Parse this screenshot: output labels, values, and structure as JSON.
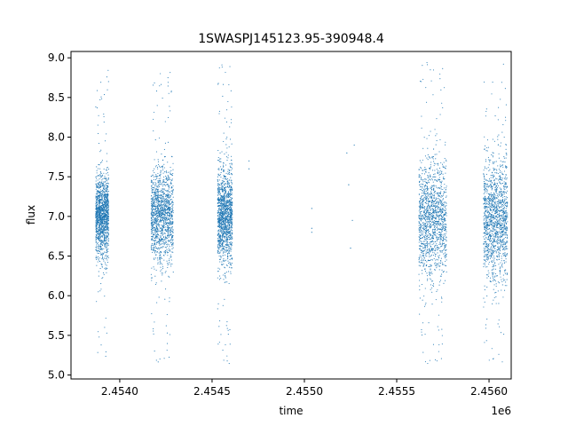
{
  "chart_data": {
    "type": "scatter",
    "title": "1SWASPJ145123.95-390948.4",
    "xlabel": "time",
    "ylabel": "flux",
    "x_offset_label": "1e6",
    "xlim": [
      2453736,
      2456120
    ],
    "ylim": [
      4.95,
      9.08
    ],
    "x_ticks": [
      2.454,
      2.4545,
      2.455,
      2.4555,
      2.456
    ],
    "x_tick_labels": [
      "2.4540",
      "2.4545",
      "2.4550",
      "2.4555",
      "2.4560"
    ],
    "y_ticks": [
      5.0,
      5.5,
      6.0,
      6.5,
      7.0,
      7.5,
      8.0,
      8.5,
      9.0
    ],
    "y_tick_labels": [
      "5.0",
      "5.5",
      "6.0",
      "6.5",
      "7.0",
      "7.5",
      "8.0",
      "8.5",
      "9.0"
    ],
    "grid": false,
    "marker_color": "#1f77b4",
    "series": [
      {
        "seasons": [
          {
            "x_range": [
              2453870,
              2453940
            ],
            "center": 7.0,
            "spread": 0.25,
            "min": 5.15,
            "max": 8.85
          },
          {
            "x_range": [
              2454170,
              2454290
            ],
            "center": 7.0,
            "spread": 0.3,
            "min": 5.12,
            "max": 8.9
          },
          {
            "x_range": [
              2454530,
              2454610
            ],
            "center": 7.0,
            "spread": 0.3,
            "min": 5.1,
            "max": 8.92
          },
          {
            "x_range": [
              2455620,
              2455770
            ],
            "center": 6.95,
            "spread": 0.38,
            "min": 5.1,
            "max": 8.95
          },
          {
            "x_range": [
              2455970,
              2456100
            ],
            "center": 6.95,
            "spread": 0.38,
            "min": 5.12,
            "max": 8.95
          }
        ],
        "sparse_points": [
          {
            "x": 2454700,
            "y": 7.7
          },
          {
            "x": 2454700,
            "y": 7.6
          },
          {
            "x": 2455040,
            "y": 7.1
          },
          {
            "x": 2455040,
            "y": 6.85
          },
          {
            "x": 2455040,
            "y": 6.8
          },
          {
            "x": 2455230,
            "y": 7.8
          },
          {
            "x": 2455240,
            "y": 7.4
          },
          {
            "x": 2455250,
            "y": 6.6
          },
          {
            "x": 2455260,
            "y": 6.95
          },
          {
            "x": 2455270,
            "y": 7.9
          }
        ]
      }
    ]
  }
}
